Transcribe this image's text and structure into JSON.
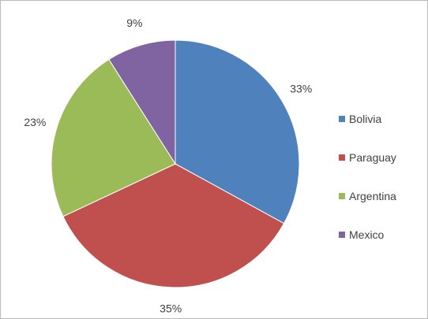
{
  "chart_data": {
    "type": "pie",
    "title": "",
    "categories": [
      "Bolivia",
      "Paraguay",
      "Argentina",
      "Mexico"
    ],
    "values": [
      33,
      35,
      23,
      9
    ],
    "labels": [
      "33%",
      "35%",
      "23%",
      "9%"
    ],
    "colors": [
      "#4f81bd",
      "#c0504d",
      "#9bbb59",
      "#8064a2"
    ],
    "start": "12 o'clock",
    "direction": "clockwise",
    "legend_position": "right"
  }
}
